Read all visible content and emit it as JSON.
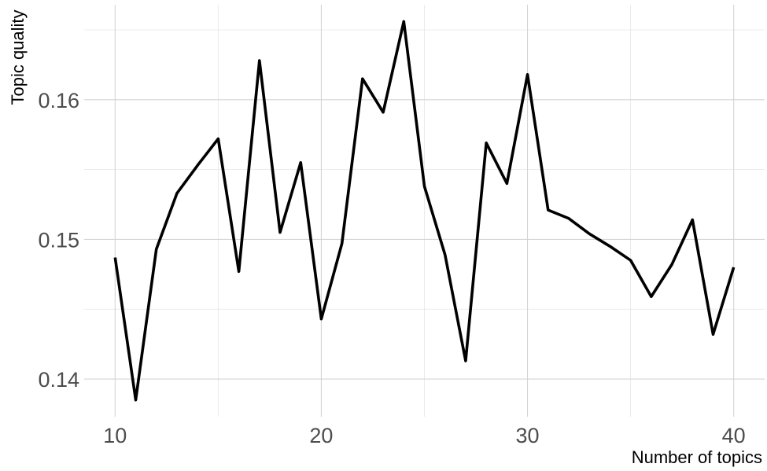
{
  "chart_data": {
    "type": "line",
    "title": "",
    "xlabel": "Number of topics",
    "ylabel": "Topic quality",
    "xlim": [
      8.5,
      41.5
    ],
    "ylim": [
      0.1373,
      0.1668
    ],
    "x_ticks": [
      10,
      20,
      30,
      40
    ],
    "x_tick_labels": [
      "10",
      "20",
      "30",
      "40"
    ],
    "y_ticks": [
      0.14,
      0.15,
      0.16
    ],
    "y_tick_labels": [
      "0.14",
      "0.15",
      "0.16"
    ],
    "grid": true,
    "legend": "none",
    "line_color": "#000000",
    "series": [
      {
        "x": [
          10,
          11,
          12,
          13,
          14,
          15,
          16,
          17,
          18,
          19,
          20,
          21,
          22,
          23,
          24,
          25,
          26,
          27,
          28,
          29,
          30,
          31,
          32,
          33,
          34,
          35,
          36,
          37,
          38,
          39,
          40
        ],
        "values": [
          0.1487,
          0.1385,
          0.1493,
          0.1533,
          0.1553,
          0.1572,
          0.1477,
          0.1628,
          0.1505,
          0.1555,
          0.1443,
          0.1497,
          0.1615,
          0.1591,
          0.1656,
          0.1538,
          0.1489,
          0.1413,
          0.1569,
          0.154,
          0.1618,
          0.1521,
          0.1515,
          0.1504,
          0.1495,
          0.1485,
          0.1459,
          0.1482,
          0.1514,
          0.1432,
          0.148
        ]
      }
    ]
  }
}
